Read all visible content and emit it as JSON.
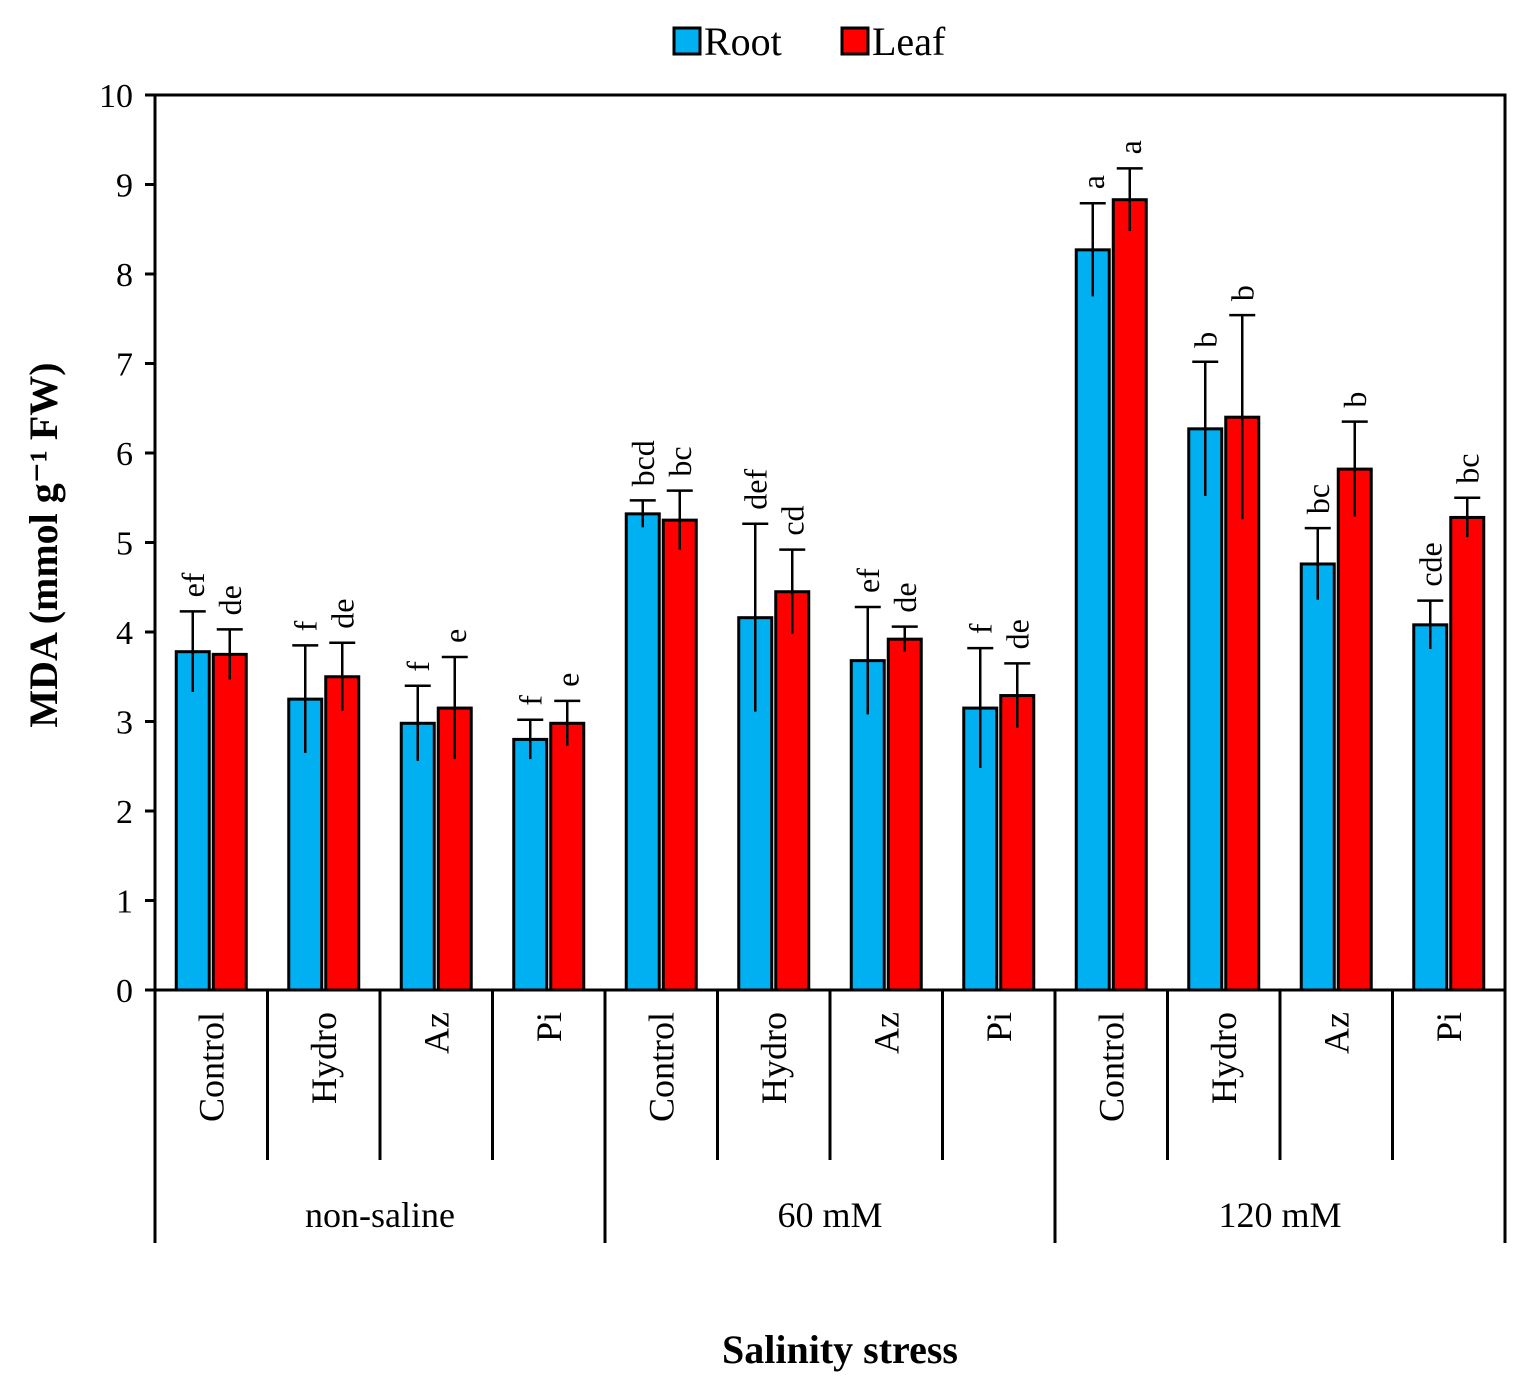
{
  "chart_data": {
    "type": "bar",
    "title": "",
    "xlabel": "Salinity stress",
    "ylabel": "MDA (mmol g⁻¹ FW)",
    "ylim": [
      0,
      10
    ],
    "yticks": [
      "0",
      "1",
      "2",
      "3",
      "4",
      "5",
      "6",
      "7",
      "8",
      "9",
      "10"
    ],
    "legend_position": "top-center",
    "groups": [
      "non-saline",
      "60 mM",
      "120 mM"
    ],
    "categories": [
      "Control",
      "Hydro",
      "Az",
      "Pi",
      "Control",
      "Hydro",
      "Az",
      "Pi",
      "Control",
      "Hydro",
      "Az",
      "Pi"
    ],
    "series": [
      {
        "name": "Root",
        "color": "#00b0f0",
        "values": [
          3.78,
          3.25,
          2.98,
          2.8,
          5.32,
          4.16,
          3.68,
          3.15,
          8.27,
          6.27,
          4.76,
          4.08
        ],
        "errors": [
          0.45,
          0.6,
          0.42,
          0.22,
          0.15,
          1.05,
          0.6,
          0.67,
          0.52,
          0.75,
          0.4,
          0.27
        ],
        "letters": [
          "ef",
          "f",
          "f",
          "f",
          "bcd",
          "def",
          "ef",
          "f",
          "a",
          "b",
          "bc",
          "cde"
        ]
      },
      {
        "name": "Leaf",
        "color": "#ff0000",
        "values": [
          3.75,
          3.5,
          3.15,
          2.98,
          5.25,
          4.45,
          3.92,
          3.29,
          8.83,
          6.4,
          5.82,
          5.28
        ],
        "errors": [
          0.28,
          0.38,
          0.57,
          0.25,
          0.33,
          0.47,
          0.14,
          0.36,
          0.35,
          1.14,
          0.53,
          0.22
        ],
        "letters": [
          "de",
          "de",
          "e",
          "e",
          "bc",
          "cd",
          "de",
          "de",
          "a",
          "b",
          "b",
          "bc"
        ]
      }
    ]
  }
}
